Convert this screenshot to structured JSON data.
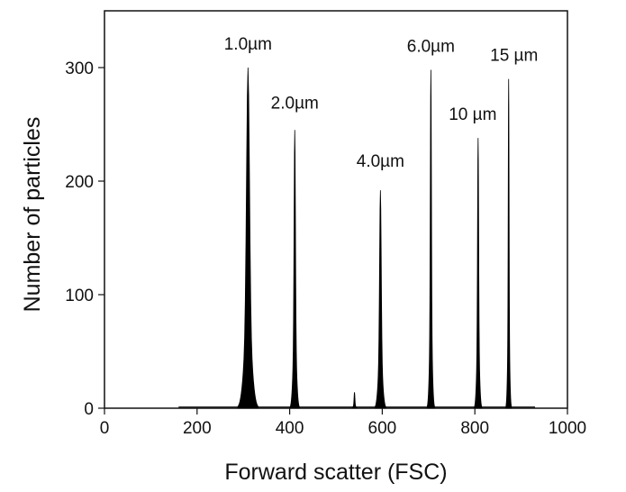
{
  "chart_data": {
    "type": "area",
    "title": "",
    "xlabel": "Forward scatter (FSC)",
    "ylabel": "Number of particles",
    "xlim": [
      0,
      1000
    ],
    "ylim": [
      0,
      350
    ],
    "xticks": [
      0,
      200,
      400,
      600,
      800,
      1000
    ],
    "yticks": [
      0,
      100,
      200,
      300
    ],
    "grid": false,
    "legend": "none",
    "series": [
      {
        "peaks": [
          {
            "label": "1.0µm",
            "x": 310,
            "height": 300,
            "halfwidth": 22
          },
          {
            "label": "2.0µm",
            "x": 411,
            "height": 245,
            "halfwidth": 10
          },
          {
            "label": "4.0µm",
            "x": 596,
            "height": 192,
            "halfwidth": 12
          },
          {
            "label": "6.0µm",
            "x": 705,
            "height": 298,
            "halfwidth": 8
          },
          {
            "label": "10 µm",
            "x": 807,
            "height": 238,
            "halfwidth": 8
          },
          {
            "label": "15 µm",
            "x": 873,
            "height": 290,
            "halfwidth": 6
          }
        ],
        "minor_peaks": [
          {
            "x": 540,
            "height": 14,
            "halfwidth": 6
          }
        ],
        "baseline_range": [
          160,
          930
        ]
      }
    ],
    "colors": {
      "fill": "#000000",
      "axis": "#111111"
    }
  }
}
